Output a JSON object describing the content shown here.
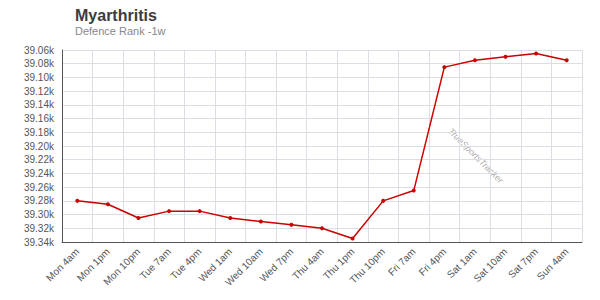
{
  "chart_data": {
    "type": "line",
    "title": "Myarthritis",
    "subtitle": "Defence Rank -1w",
    "categories": [
      "Mon 4am",
      "Mon 1pm",
      "Mon 10pm",
      "Tue 7am",
      "Tue 4pm",
      "Wed 1am",
      "Wed 10am",
      "Wed 7pm",
      "Thu 4am",
      "Thu 1pm",
      "Thu 10pm",
      "Fri 7am",
      "Fri 4pm",
      "Sat 1am",
      "Sat 10am",
      "Sat 7pm",
      "Sun 4am"
    ],
    "values": [
      39280,
      39285,
      39305,
      39295,
      39295,
      39305,
      39310,
      39315,
      39320,
      39335,
      39280,
      39265,
      39085,
      39075,
      39070,
      39065,
      39075
    ],
    "color": "#cc0000",
    "marker": "circle",
    "ylim": [
      39340,
      39060
    ],
    "yticks": [
      {
        "value": 39060,
        "label": "39.06k"
      },
      {
        "value": 39080,
        "label": "39.08k"
      },
      {
        "value": 39100,
        "label": "39.10k"
      },
      {
        "value": 39120,
        "label": "39.12k"
      },
      {
        "value": 39140,
        "label": "39.14k"
      },
      {
        "value": 39160,
        "label": "39.16k"
      },
      {
        "value": 39180,
        "label": "39.18k"
      },
      {
        "value": 39200,
        "label": "39.20k"
      },
      {
        "value": 39220,
        "label": "39.22k"
      },
      {
        "value": 39240,
        "label": "39.24k"
      },
      {
        "value": 39260,
        "label": "39.26k"
      },
      {
        "value": 39280,
        "label": "39.28k"
      },
      {
        "value": 39300,
        "label": "39.30k"
      },
      {
        "value": 39320,
        "label": "39.32k"
      },
      {
        "value": 39340,
        "label": "39.34k"
      }
    ],
    "grid": true,
    "annotations": [
      "TrueSportsTracker"
    ]
  }
}
